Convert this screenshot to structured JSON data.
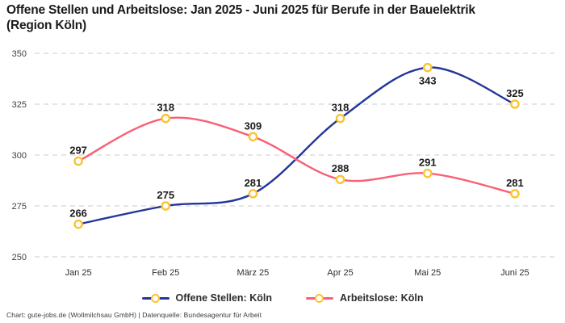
{
  "header": {
    "title_line1": "Offene Stellen und Arbeitslose: Jan 2025 - Juni 2025 für Berufe in der Bauelektrik",
    "title_line2": "(Region Köln)"
  },
  "footer": {
    "credit": "Chart: gute-jobs.de (Wollmilchsau GmbH) | Datenquelle: Bundesagentur für Arbeit"
  },
  "colors": {
    "open_positions_line": "#23369b",
    "unemployed_line": "#f95f76",
    "marker_ring": "#fcc330",
    "marker_fill": "#ffffff",
    "grid": "#cbcbcb",
    "value_label_text": "#1c1c1c",
    "tick_text": "#3f3f3f"
  },
  "chart_data": {
    "type": "line",
    "title": "Offene Stellen und Arbeitslose: Jan 2025 - Juni 2025 für Berufe in der Bauelektrik (Region Köln)",
    "categories": [
      "Jan 25",
      "Feb 25",
      "März 25",
      "Apr 25",
      "Mai 25",
      "Juni 25"
    ],
    "series": [
      {
        "name": "Offene Stellen: Köln",
        "color": "#23369b",
        "values": [
          266,
          275,
          281,
          318,
          343,
          325
        ],
        "value_label_positions": [
          "above",
          "above",
          "above",
          "above",
          "below",
          "above"
        ]
      },
      {
        "name": "Arbeitslose: Köln",
        "color": "#f95f76",
        "values": [
          297,
          318,
          309,
          288,
          291,
          281
        ],
        "value_label_positions": [
          "above",
          "above",
          "above",
          "above",
          "above",
          "above"
        ]
      }
    ],
    "ylim": [
      250,
      350
    ],
    "yticks": [
      250,
      275,
      300,
      325,
      350
    ],
    "grid": "dashed-horizontal",
    "legend_position": "bottom",
    "marker": {
      "shape": "circle",
      "ring_color": "#fcc330",
      "fill": "#ffffff"
    }
  }
}
